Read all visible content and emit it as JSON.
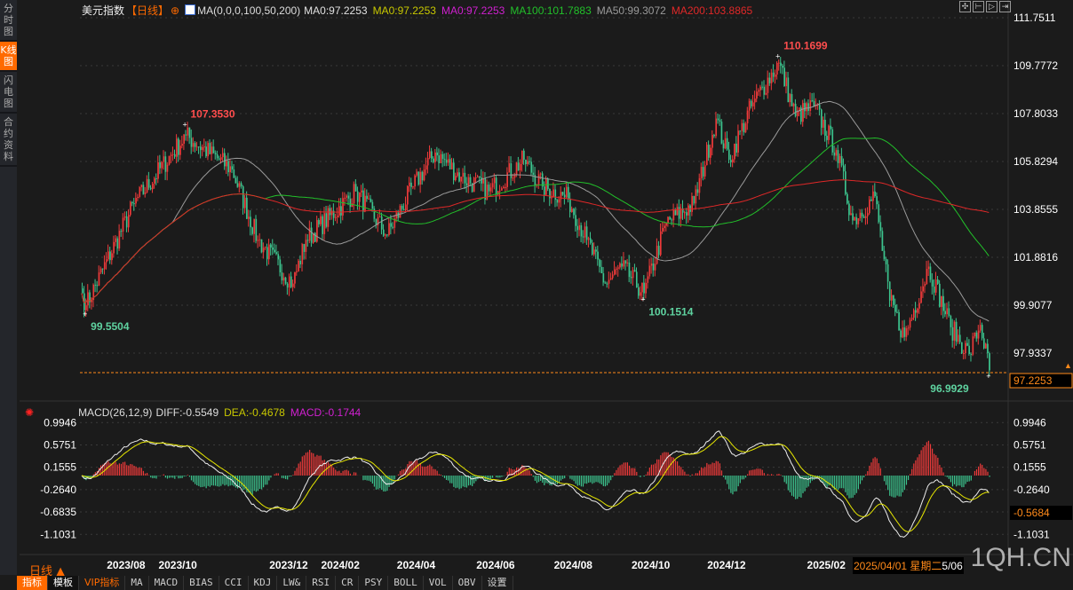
{
  "sidebar": {
    "tabs": [
      {
        "label": "分时图",
        "active": false
      },
      {
        "label": "K线图",
        "active": true
      },
      {
        "label": "闪电图",
        "active": false
      },
      {
        "label": "合约资料",
        "active": false
      }
    ]
  },
  "header": {
    "symbol": "美元指数",
    "period": "【日线】",
    "ma_params": "MA(0,0,0,100,50,200)",
    "ma_values": [
      {
        "label": "MA0:97.2253",
        "color": "#e0e0e0"
      },
      {
        "label": "MA0:97.2253",
        "color": "#c8c800"
      },
      {
        "label": "MA0:97.2253",
        "color": "#d020d0"
      },
      {
        "label": "MA100:101.7883",
        "color": "#22c02a"
      },
      {
        "label": "MA50:99.3072",
        "color": "#9a9a9a"
      },
      {
        "label": "MA200:103.8865",
        "color": "#e02828"
      }
    ]
  },
  "macd_header": {
    "params": "MACD(26,12,9)",
    "diff": "DIFF:-0.5549",
    "dea": "DEA:-0.4678",
    "macd": "MACD:-0.1744"
  },
  "chart_data": {
    "type": "candlestick",
    "instrument": "美元指数",
    "price_axis": [
      "111.7511",
      "109.7772",
      "107.8033",
      "105.8294",
      "103.8555",
      "101.8816",
      "99.9077",
      "97.9337"
    ],
    "ylim": [
      97.0,
      111.7511
    ],
    "last_price": "97.2253",
    "annotations": [
      {
        "label": "110.1699",
        "type": "high",
        "bar": 377,
        "price": 110.1699
      },
      {
        "label": "107.3530",
        "type": "high",
        "bar": 56,
        "price": 107.353
      },
      {
        "label": "99.5504",
        "type": "low",
        "bar": 2,
        "price": 99.5504
      },
      {
        "label": "100.1514",
        "type": "low",
        "bar": 304,
        "price": 100.1514
      },
      {
        "label": "96.9929",
        "type": "low",
        "bar": 491,
        "price": 96.9929
      }
    ],
    "close_key_points": [
      [
        0,
        100.4
      ],
      [
        2,
        99.9
      ],
      [
        28,
        104.1
      ],
      [
        56,
        106.9
      ],
      [
        81,
        105.5
      ],
      [
        95,
        102.6
      ],
      [
        114,
        100.8
      ],
      [
        121,
        102.6
      ],
      [
        148,
        104.6
      ],
      [
        165,
        102.8
      ],
      [
        179,
        104.8
      ],
      [
        191,
        106.2
      ],
      [
        205,
        105.2
      ],
      [
        220,
        104.6
      ],
      [
        239,
        105.9
      ],
      [
        249,
        104.8
      ],
      [
        263,
        104.3
      ],
      [
        273,
        102.6
      ],
      [
        283,
        100.8
      ],
      [
        292,
        101.5
      ],
      [
        304,
        100.4
      ],
      [
        316,
        103.3
      ],
      [
        331,
        104.1
      ],
      [
        343,
        107.6
      ],
      [
        350,
        105.9
      ],
      [
        362,
        108.1
      ],
      [
        377,
        109.9
      ],
      [
        386,
        107.7
      ],
      [
        396,
        108.1
      ],
      [
        408,
        106.3
      ],
      [
        417,
        103.4
      ],
      [
        429,
        104.4
      ],
      [
        437,
        100.1
      ],
      [
        445,
        98.6
      ],
      [
        458,
        101.5
      ],
      [
        470,
        99.0
      ],
      [
        480,
        97.9
      ],
      [
        486,
        99.1
      ],
      [
        491,
        97.2253
      ]
    ],
    "x_axis": [
      "2023/08",
      "2023/10",
      "2023/12",
      "2024/02",
      "2024/04",
      "2024/06",
      "2024/08",
      "2024/10",
      "2024/12",
      "2025/02"
    ],
    "x_axis_bars": [
      24,
      52,
      112,
      140,
      181,
      224,
      266,
      308,
      349,
      403
    ],
    "macd_axis": [
      "0.9946",
      "0.5751",
      "0.1555",
      "-0.2640",
      "-0.6835",
      "-1.1031"
    ],
    "macd_last": "-0.5684",
    "macd_ylim": [
      -1.3,
      1.05
    ]
  },
  "footer": {
    "period_label": "日线 ▲",
    "date_tip": "2025/04/01 星期二",
    "date_tail": "5/06",
    "watermark": "1QH.CN",
    "toolbar": [
      "指标",
      "模板",
      "VIP指标",
      "MA",
      "MACD",
      "BIAS",
      "CCI",
      "KDJ",
      "LW&",
      "RSI",
      "CR",
      "PSY",
      "BOLL",
      "VOL",
      "OBV",
      "设置"
    ]
  },
  "colors": {
    "up": "#ee3a3a",
    "down": "#3cc48e",
    "accent": "#ff6a00"
  }
}
